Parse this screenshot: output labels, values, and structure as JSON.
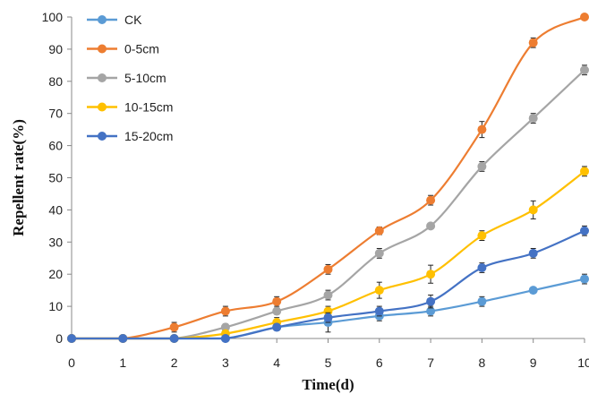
{
  "chart_data": {
    "type": "line",
    "title": "",
    "xlabel": "Time(d)",
    "ylabel": "Repellent rate(%)",
    "x": [
      0,
      1,
      2,
      3,
      4,
      5,
      6,
      7,
      8,
      9,
      10
    ],
    "xlim": [
      0,
      10
    ],
    "ylim": [
      0,
      100
    ],
    "xticks": [
      "0",
      "1",
      "2",
      "3",
      "4",
      "5",
      "6",
      "7",
      "8",
      "9",
      "10"
    ],
    "yticks": [
      "0",
      "10",
      "20",
      "30",
      "40",
      "50",
      "60",
      "70",
      "80",
      "90",
      "100"
    ],
    "grid": false,
    "legend_position": "top-left",
    "series": [
      {
        "name": "CK",
        "color": "#5B9BD5",
        "values": [
          0,
          0,
          0,
          0,
          3.5,
          5,
          7,
          8.5,
          11.5,
          15,
          18.5
        ],
        "errors": [
          0,
          0,
          0,
          0,
          0.8,
          3,
          1.5,
          1.5,
          1.5,
          0.8,
          1.5
        ]
      },
      {
        "name": "0-5cm",
        "color": "#ED7D31",
        "values": [
          0,
          0,
          3.5,
          8.5,
          11.5,
          21.5,
          33.5,
          43,
          65,
          92,
          100
        ],
        "errors": [
          0,
          0,
          1.5,
          1.5,
          1.5,
          1.5,
          1.2,
          1.5,
          2.5,
          1.5,
          0.8
        ]
      },
      {
        "name": "5-10cm",
        "color": "#A5A5A5",
        "values": [
          0,
          0,
          0,
          3.5,
          8.5,
          13.5,
          26.5,
          35,
          53.5,
          68.5,
          83.5
        ],
        "errors": [
          0,
          0,
          0,
          1,
          1,
          1.5,
          1.5,
          0.8,
          1.5,
          1.5,
          1.5
        ]
      },
      {
        "name": "10-15cm",
        "color": "#FFC000",
        "values": [
          0,
          0,
          0,
          1.5,
          5,
          8.5,
          15,
          20,
          32,
          40,
          52
        ],
        "errors": [
          0,
          0,
          0,
          1,
          1.5,
          1.5,
          2.5,
          2.8,
          1.5,
          2.8,
          1.5
        ]
      },
      {
        "name": "15-20cm",
        "color": "#4472C4",
        "values": [
          0,
          0,
          0,
          0,
          3.5,
          6.5,
          8.5,
          11.5,
          22,
          26.5,
          33.5
        ],
        "errors": [
          0,
          0,
          0,
          0,
          1,
          1.5,
          1.5,
          2,
          1.5,
          1.5,
          1.5
        ]
      }
    ]
  }
}
